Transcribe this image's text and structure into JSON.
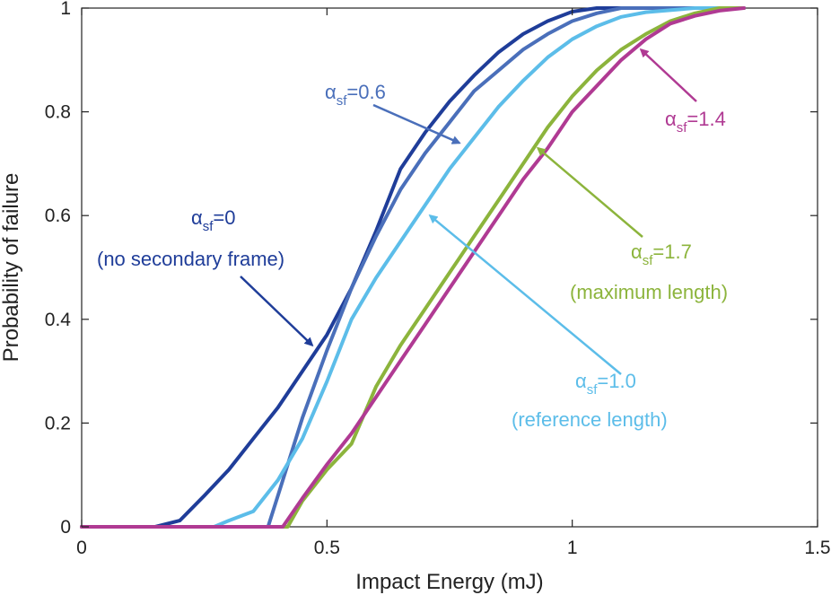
{
  "chart_data": {
    "type": "line",
    "xlabel": "Impact Energy (mJ)",
    "ylabel": "Probability of failure",
    "xlim": [
      0,
      1.5
    ],
    "ylim": [
      0,
      1
    ],
    "xticks": [
      0,
      0.5,
      1,
      1.5
    ],
    "xtick_labels": [
      "0",
      "0.5",
      "1",
      "1.5"
    ],
    "yticks": [
      0,
      0.2,
      0.4,
      0.6,
      0.8,
      1
    ],
    "ytick_labels": [
      "0",
      "0.2",
      "0.4",
      "0.6",
      "0.8",
      "1"
    ],
    "grid": false,
    "legend": "none",
    "series": [
      {
        "color": "#1f3d99",
        "points": [
          [
            0,
            0
          ],
          [
            0.15,
            0
          ],
          [
            0.2,
            0.012
          ],
          [
            0.25,
            0.06
          ],
          [
            0.3,
            0.11
          ],
          [
            0.35,
            0.17
          ],
          [
            0.4,
            0.23
          ],
          [
            0.45,
            0.3
          ],
          [
            0.5,
            0.37
          ],
          [
            0.55,
            0.46
          ],
          [
            0.6,
            0.57
          ],
          [
            0.65,
            0.69
          ],
          [
            0.7,
            0.76
          ],
          [
            0.75,
            0.82
          ],
          [
            0.8,
            0.87
          ],
          [
            0.85,
            0.915
          ],
          [
            0.9,
            0.95
          ],
          [
            0.95,
            0.975
          ],
          [
            1.0,
            0.993
          ],
          [
            1.05,
            1.0
          ],
          [
            1.35,
            1.0
          ]
        ]
      },
      {
        "color": "#4a6fba",
        "points": [
          [
            0,
            0
          ],
          [
            0.38,
            0
          ],
          [
            0.4,
            0.06
          ],
          [
            0.45,
            0.21
          ],
          [
            0.5,
            0.34
          ],
          [
            0.55,
            0.46
          ],
          [
            0.6,
            0.56
          ],
          [
            0.65,
            0.65
          ],
          [
            0.7,
            0.72
          ],
          [
            0.75,
            0.78
          ],
          [
            0.8,
            0.84
          ],
          [
            0.85,
            0.88
          ],
          [
            0.9,
            0.92
          ],
          [
            0.95,
            0.95
          ],
          [
            1.0,
            0.975
          ],
          [
            1.05,
            0.99
          ],
          [
            1.1,
            1.0
          ],
          [
            1.35,
            1.0
          ]
        ]
      },
      {
        "color": "#5cbde9",
        "points": [
          [
            0,
            0
          ],
          [
            0.27,
            0
          ],
          [
            0.3,
            0.012
          ],
          [
            0.35,
            0.03
          ],
          [
            0.4,
            0.09
          ],
          [
            0.45,
            0.17
          ],
          [
            0.5,
            0.28
          ],
          [
            0.55,
            0.4
          ],
          [
            0.6,
            0.48
          ],
          [
            0.65,
            0.55
          ],
          [
            0.7,
            0.62
          ],
          [
            0.75,
            0.69
          ],
          [
            0.8,
            0.75
          ],
          [
            0.85,
            0.81
          ],
          [
            0.9,
            0.86
          ],
          [
            0.95,
            0.905
          ],
          [
            1.0,
            0.94
          ],
          [
            1.05,
            0.965
          ],
          [
            1.1,
            0.983
          ],
          [
            1.15,
            0.992
          ],
          [
            1.25,
            1.0
          ],
          [
            1.35,
            1.0
          ]
        ]
      },
      {
        "color": "#8cb43c",
        "points": [
          [
            0,
            0
          ],
          [
            0.42,
            0
          ],
          [
            0.45,
            0.05
          ],
          [
            0.5,
            0.11
          ],
          [
            0.55,
            0.16
          ],
          [
            0.6,
            0.27
          ],
          [
            0.65,
            0.35
          ],
          [
            0.7,
            0.42
          ],
          [
            0.75,
            0.49
          ],
          [
            0.8,
            0.56
          ],
          [
            0.85,
            0.63
          ],
          [
            0.9,
            0.7
          ],
          [
            0.95,
            0.77
          ],
          [
            1.0,
            0.83
          ],
          [
            1.05,
            0.88
          ],
          [
            1.1,
            0.92
          ],
          [
            1.15,
            0.95
          ],
          [
            1.2,
            0.975
          ],
          [
            1.25,
            0.99
          ],
          [
            1.3,
            1.0
          ],
          [
            1.35,
            1.0
          ]
        ]
      },
      {
        "color": "#b03a93",
        "points": [
          [
            0,
            0
          ],
          [
            0.41,
            0
          ],
          [
            0.45,
            0.055
          ],
          [
            0.5,
            0.12
          ],
          [
            0.55,
            0.18
          ],
          [
            0.6,
            0.25
          ],
          [
            0.65,
            0.32
          ],
          [
            0.7,
            0.39
          ],
          [
            0.75,
            0.46
          ],
          [
            0.8,
            0.53
          ],
          [
            0.85,
            0.6
          ],
          [
            0.9,
            0.67
          ],
          [
            0.95,
            0.73
          ],
          [
            1.0,
            0.8
          ],
          [
            1.05,
            0.85
          ],
          [
            1.1,
            0.9
          ],
          [
            1.15,
            0.94
          ],
          [
            1.2,
            0.97
          ],
          [
            1.25,
            0.985
          ],
          [
            1.3,
            0.995
          ],
          [
            1.35,
            1.0
          ]
        ]
      }
    ],
    "annotations": [
      {
        "greek": "α",
        "sub": "sf",
        "value": "=0",
        "line2": "(no secondary frame)",
        "color": "#1f3d99",
        "arrow_to": [
          0.47,
          0.35
        ]
      },
      {
        "greek": "α",
        "sub": "sf",
        "value": "=0.6",
        "color": "#4a6fba",
        "arrow_to": [
          0.77,
          0.74
        ]
      },
      {
        "greek": "α",
        "sub": "sf",
        "value": "=1.0",
        "line2": "(reference length)",
        "color": "#5cbde9",
        "arrow_to": [
          0.71,
          0.6
        ]
      },
      {
        "greek": "α",
        "sub": "sf",
        "value": "=1.7",
        "line2": "(maximum length)",
        "color": "#8cb43c",
        "arrow_to": [
          0.93,
          0.73
        ]
      },
      {
        "greek": "α",
        "sub": "sf",
        "value": "=1.4",
        "color": "#b03a93",
        "arrow_to": [
          1.14,
          0.92
        ]
      }
    ]
  }
}
